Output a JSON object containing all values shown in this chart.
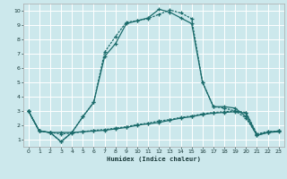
{
  "xlabel": "Humidex (Indice chaleur)",
  "bg_color": "#cce8ec",
  "grid_color": "#ffffff",
  "line_color": "#1a6b6b",
  "xlim": [
    -0.5,
    23.5
  ],
  "ylim": [
    0.5,
    10.5
  ],
  "xticks": [
    0,
    1,
    2,
    3,
    4,
    5,
    6,
    7,
    8,
    9,
    10,
    11,
    12,
    13,
    14,
    15,
    16,
    17,
    18,
    19,
    20,
    21,
    22,
    23
  ],
  "yticks": [
    1,
    2,
    3,
    4,
    5,
    6,
    7,
    8,
    9,
    10
  ],
  "line1_x": [
    0,
    1,
    2,
    3,
    4,
    5,
    6,
    7,
    8,
    9,
    10,
    11,
    12,
    13,
    14,
    15,
    16,
    17,
    18,
    19,
    20,
    21,
    22,
    23
  ],
  "line1_y": [
    3.0,
    1.6,
    1.5,
    1.5,
    1.5,
    1.55,
    1.6,
    1.65,
    1.75,
    1.85,
    2.0,
    2.1,
    2.2,
    2.35,
    2.5,
    2.6,
    2.75,
    2.85,
    2.9,
    2.95,
    2.85,
    1.3,
    1.5,
    1.55
  ],
  "line2_x": [
    0,
    1,
    2,
    3,
    4,
    5,
    6,
    7,
    8,
    9,
    10,
    11,
    12,
    13,
    14,
    15,
    16,
    17,
    18,
    19,
    20,
    21,
    22,
    23
  ],
  "line2_y": [
    3.0,
    1.6,
    1.5,
    1.4,
    1.45,
    1.55,
    1.65,
    1.7,
    1.8,
    1.9,
    2.05,
    2.15,
    2.3,
    2.4,
    2.55,
    2.65,
    2.8,
    2.9,
    2.95,
    3.0,
    2.9,
    1.4,
    1.55,
    1.6
  ],
  "line3_x": [
    0,
    1,
    2,
    3,
    4,
    5,
    6,
    7,
    8,
    9,
    10,
    11,
    12,
    13,
    14,
    15,
    16,
    17,
    18,
    19,
    20,
    21,
    22,
    23
  ],
  "line3_y": [
    3.0,
    1.6,
    1.5,
    0.85,
    1.5,
    2.6,
    3.6,
    6.8,
    7.7,
    9.1,
    9.3,
    9.5,
    10.1,
    9.9,
    9.5,
    9.1,
    5.0,
    3.3,
    3.3,
    3.2,
    2.6,
    1.3,
    1.5,
    1.6
  ],
  "line4_x": [
    0,
    1,
    2,
    3,
    4,
    5,
    6,
    7,
    8,
    9,
    10,
    11,
    12,
    13,
    14,
    15,
    16,
    17,
    18,
    19,
    20,
    21,
    22,
    23
  ],
  "line4_y": [
    3.0,
    1.6,
    1.5,
    0.85,
    1.5,
    2.6,
    3.6,
    7.1,
    8.2,
    9.2,
    9.3,
    9.45,
    9.75,
    10.05,
    9.85,
    9.45,
    5.0,
    3.3,
    3.2,
    3.0,
    2.5,
    1.35,
    1.55,
    1.6
  ]
}
